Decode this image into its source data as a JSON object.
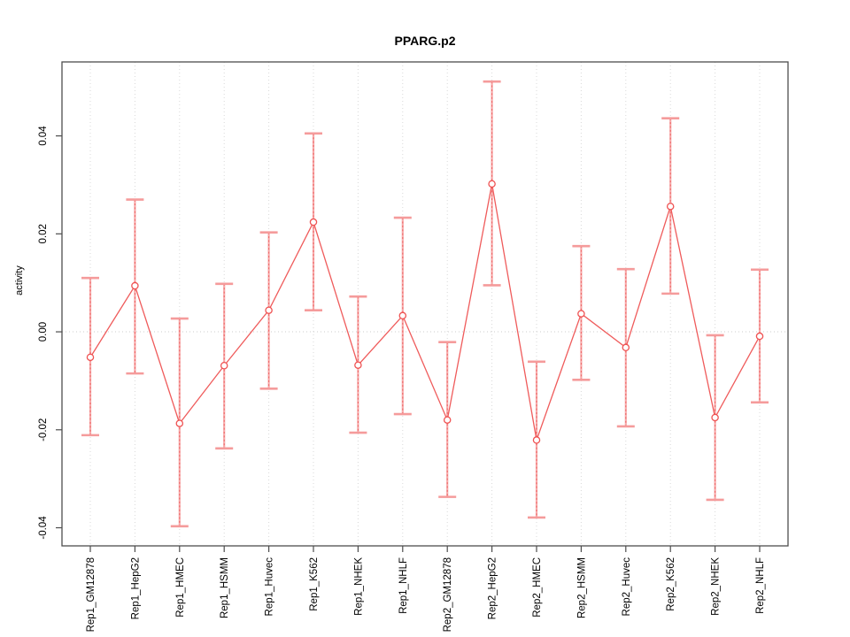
{
  "window": {
    "background": "#ffffff"
  },
  "chart_data": {
    "type": "line",
    "title": "PPARG.p2",
    "xlabel": "",
    "ylabel": "activity",
    "categories": [
      "Rep1_GM12878",
      "Rep1_HepG2",
      "Rep1_HMEC",
      "Rep1_HSMM",
      "Rep1_Huvec",
      "Rep1_K562",
      "Rep1_NHEK",
      "Rep1_NHLF",
      "Rep2_GM12878",
      "Rep2_HepG2",
      "Rep2_HMEC",
      "Rep2_HSMM",
      "Rep2_Huvec",
      "Rep2_K562",
      "Rep2_NHEK",
      "Rep2_NHLF"
    ],
    "series": [
      {
        "name": "activity",
        "values": [
          -0.0052,
          0.0094,
          -0.0187,
          -0.0069,
          0.0044,
          0.0224,
          -0.0068,
          0.0033,
          -0.018,
          0.0302,
          -0.0221,
          0.0037,
          -0.0032,
          0.0256,
          -0.0175,
          -0.0009
        ],
        "error_low": [
          -0.0211,
          -0.0085,
          -0.0397,
          -0.0238,
          -0.0116,
          0.0044,
          -0.0206,
          -0.0168,
          -0.0337,
          0.0095,
          -0.0379,
          -0.0098,
          -0.0193,
          0.0078,
          -0.0343,
          -0.0144
        ],
        "error_high": [
          0.011,
          0.027,
          0.0027,
          0.0098,
          0.0203,
          0.0405,
          0.0072,
          0.0233,
          -0.0021,
          0.0511,
          -0.0061,
          0.0175,
          0.0128,
          0.0436,
          -0.0007,
          0.0127
        ]
      }
    ],
    "yticks": {
      "values": [
        -0.04,
        -0.02,
        0,
        0.02,
        0.04
      ],
      "labels": [
        "-0.04",
        "-0.02",
        "0.00",
        "0.02",
        "0.04"
      ]
    },
    "ylim": [
      -0.0437,
      0.0551
    ],
    "legend": "none",
    "grid": {
      "vertical": "dotted-per-category",
      "zero_line": "dotted"
    },
    "point_style": "open-circle",
    "x_label_rotation": 90,
    "y_label_rotation": 90,
    "colors": {
      "series_line": "#ef5b5b",
      "point_stroke": "#ef5252",
      "error_bar_solid": "#f7abab",
      "error_bar_dash": "#ee6161",
      "error_cap": "#f59b9b",
      "grid": "#d9d9d9",
      "zero_line": "#cccccc",
      "frame": "#4d4d4d",
      "tick": "#4d4d4d",
      "text": "#000000"
    }
  }
}
